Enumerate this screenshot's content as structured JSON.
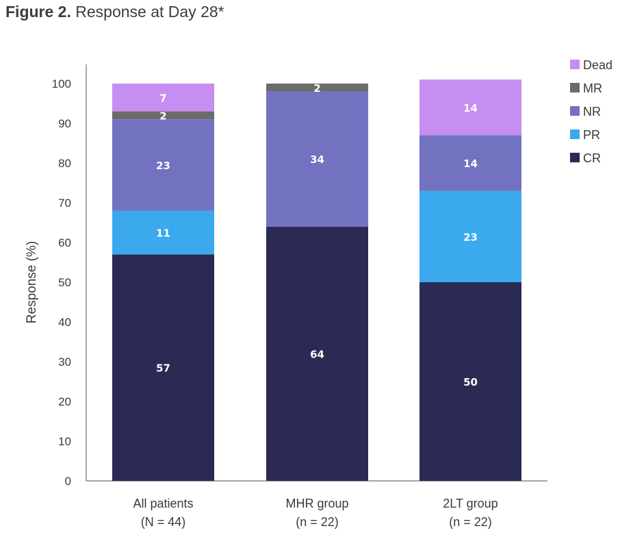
{
  "figure": {
    "label": "Figure 2.",
    "caption": "Response at Day 28*"
  },
  "chart_data": {
    "type": "bar",
    "stacked": true,
    "categories": [
      [
        "All patients",
        "(N = 44)"
      ],
      [
        "MHR group",
        "(n = 22)"
      ],
      [
        "2LT group",
        "(n = 22)"
      ]
    ],
    "series": [
      {
        "name": "CR",
        "color": "#2b2a55",
        "values": [
          57,
          64,
          50
        ]
      },
      {
        "name": "PR",
        "color": "#3aa9ee",
        "values": [
          11,
          0,
          23
        ]
      },
      {
        "name": "NR",
        "color": "#7272c0",
        "values": [
          23,
          34,
          14
        ]
      },
      {
        "name": "MR",
        "color": "#6b6b6b",
        "values": [
          2,
          2,
          0
        ]
      },
      {
        "name": "Dead",
        "color": "#c58ef0",
        "values": [
          7,
          0,
          14
        ]
      }
    ],
    "legend_order": [
      "Dead",
      "MR",
      "NR",
      "PR",
      "CR"
    ],
    "legend_position": "top-right",
    "ylabel": "Response (%)",
    "xlabel": "",
    "ylim": [
      0,
      100
    ],
    "yticks": [
      0,
      10,
      20,
      30,
      40,
      50,
      60,
      70,
      80,
      90,
      100
    ],
    "grid": false
  }
}
